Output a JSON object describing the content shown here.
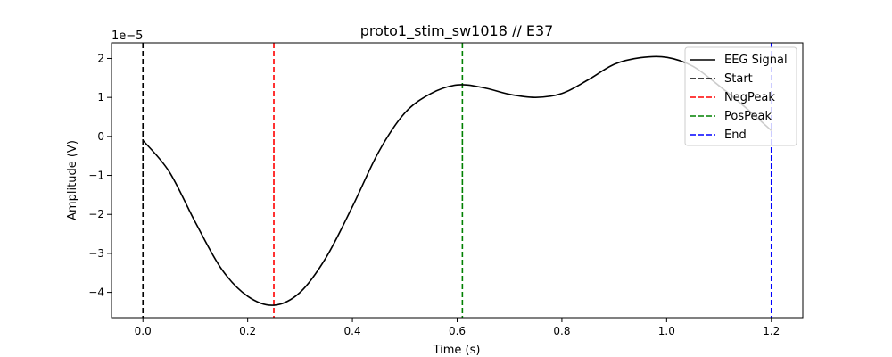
{
  "chart_data": {
    "type": "line",
    "title": "proto1_stim_sw1018 // E37",
    "xlabel": "Time (s)",
    "ylabel": "Amplitude (V)",
    "y_offset_label": "1e−5",
    "xlim": [
      -0.06,
      1.26
    ],
    "ylim": [
      -4.65,
      2.4
    ],
    "y_scale": 1e-05,
    "grid": false,
    "legend_position": "top-right",
    "x_ticks": [
      0.0,
      0.2,
      0.4,
      0.6,
      0.8,
      1.0,
      1.2
    ],
    "x_tick_labels": [
      "0.0",
      "0.2",
      "0.4",
      "0.6",
      "0.8",
      "1.0",
      "1.2"
    ],
    "y_ticks": [
      -4,
      -3,
      -2,
      -1,
      0,
      1,
      2
    ],
    "y_tick_labels": [
      "−4",
      "−3",
      "−2",
      "−1",
      "0",
      "1",
      "2"
    ],
    "series": [
      {
        "name": "EEG Signal",
        "color": "#000000",
        "style": "solid",
        "x": [
          0.0,
          0.05,
          0.1,
          0.15,
          0.2,
          0.25,
          0.3,
          0.35,
          0.4,
          0.45,
          0.5,
          0.55,
          0.6,
          0.65,
          0.7,
          0.75,
          0.8,
          0.85,
          0.9,
          0.95,
          1.0,
          1.05,
          1.1,
          1.15,
          1.2
        ],
        "y": [
          -0.1,
          -0.9,
          -2.2,
          -3.4,
          -4.1,
          -4.33,
          -4.0,
          -3.1,
          -1.8,
          -0.4,
          0.6,
          1.1,
          1.32,
          1.25,
          1.08,
          1.0,
          1.1,
          1.45,
          1.85,
          2.02,
          2.03,
          1.8,
          1.3,
          0.75,
          0.15
        ]
      }
    ],
    "vlines": [
      {
        "name": "Start",
        "x": 0.0,
        "color": "#000000"
      },
      {
        "name": "NegPeak",
        "x": 0.25,
        "color": "#ff0000"
      },
      {
        "name": "PosPeak",
        "x": 0.61,
        "color": "#008000"
      },
      {
        "name": "End",
        "x": 1.2,
        "color": "#0000ff"
      }
    ]
  }
}
